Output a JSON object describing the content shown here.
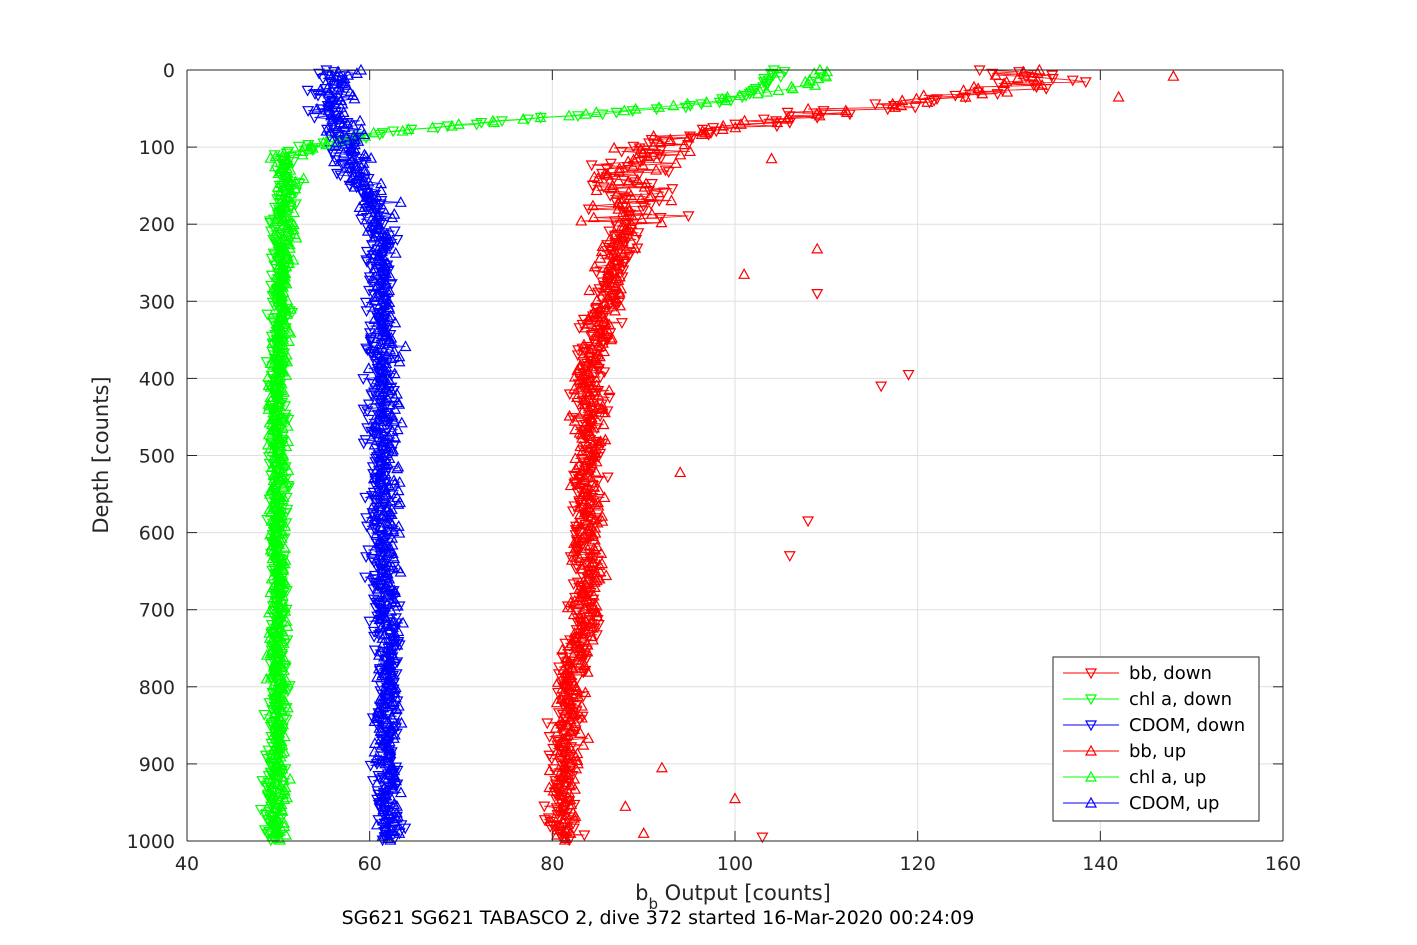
{
  "chart_data": {
    "type": "scatter",
    "title": "",
    "xlabel_base": "b",
    "xlabel_sub": "b",
    "xlabel_rest": " Output [counts]",
    "ylabel": "Depth [counts]",
    "caption": "SG621 SG621 TABASCO 2, dive 372 started 16-Mar-2020 00:24:09",
    "xlim": [
      40,
      160
    ],
    "ylim": [
      0,
      1000
    ],
    "y_reversed": true,
    "grid": true,
    "legend_position": "bottom-right",
    "xticks": [
      40,
      60,
      80,
      100,
      120,
      140,
      160
    ],
    "yticks": [
      0,
      100,
      200,
      300,
      400,
      500,
      600,
      700,
      800,
      900,
      1000
    ],
    "series": [
      {
        "name": "bb, down",
        "color": "#ff0000",
        "marker": "triangle-down",
        "profile": [
          [
            0,
            128
          ],
          [
            20,
            135
          ],
          [
            40,
            120
          ],
          [
            60,
            108
          ],
          [
            80,
            97
          ],
          [
            100,
            91
          ],
          [
            130,
            89
          ],
          [
            180,
            88
          ],
          [
            230,
            87
          ],
          [
            300,
            86
          ],
          [
            400,
            84
          ],
          [
            500,
            84
          ],
          [
            600,
            83
          ],
          [
            700,
            84
          ],
          [
            800,
            82
          ],
          [
            900,
            81
          ],
          [
            1000,
            81
          ]
        ]
      },
      {
        "name": "chl a, down",
        "color": "#00ff00",
        "marker": "triangle-down",
        "profile": [
          [
            0,
            105
          ],
          [
            20,
            103
          ],
          [
            40,
            100
          ],
          [
            55,
            88
          ],
          [
            65,
            76
          ],
          [
            80,
            62
          ],
          [
            95,
            55
          ],
          [
            110,
            51
          ],
          [
            150,
            51
          ],
          [
            200,
            50
          ],
          [
            400,
            50
          ],
          [
            600,
            50
          ],
          [
            800,
            50
          ],
          [
            1000,
            49
          ]
        ]
      },
      {
        "name": "CDOM, down",
        "color": "#0000ff",
        "marker": "triangle-down",
        "profile": [
          [
            0,
            56
          ],
          [
            50,
            55
          ],
          [
            100,
            57
          ],
          [
            150,
            59
          ],
          [
            200,
            61
          ],
          [
            400,
            61
          ],
          [
            600,
            61
          ],
          [
            800,
            62
          ],
          [
            1000,
            62
          ]
        ]
      },
      {
        "name": "bb, up",
        "color": "#ff0000",
        "marker": "triangle-up",
        "profile": [
          [
            0,
            133
          ],
          [
            20,
            130
          ],
          [
            40,
            120
          ],
          [
            60,
            108
          ],
          [
            80,
            97
          ],
          [
            100,
            91
          ],
          [
            130,
            89
          ],
          [
            180,
            88
          ],
          [
            230,
            87
          ],
          [
            300,
            86
          ],
          [
            400,
            84
          ],
          [
            500,
            84
          ],
          [
            600,
            84
          ],
          [
            700,
            84
          ],
          [
            800,
            82
          ],
          [
            900,
            82
          ],
          [
            1000,
            81
          ]
        ]
      },
      {
        "name": "chl a, up",
        "color": "#00ff00",
        "marker": "triangle-up",
        "profile": [
          [
            0,
            110
          ],
          [
            20,
            108
          ],
          [
            40,
            98
          ],
          [
            55,
            86
          ],
          [
            65,
            75
          ],
          [
            80,
            62
          ],
          [
            95,
            55
          ],
          [
            110,
            51
          ],
          [
            150,
            51
          ],
          [
            200,
            51
          ],
          [
            400,
            50
          ],
          [
            600,
            50
          ],
          [
            800,
            50
          ],
          [
            1000,
            50
          ]
        ]
      },
      {
        "name": "CDOM, up",
        "color": "#0000ff",
        "marker": "triangle-up",
        "profile": [
          [
            0,
            57
          ],
          [
            50,
            56
          ],
          [
            100,
            58
          ],
          [
            150,
            60
          ],
          [
            200,
            61
          ],
          [
            400,
            62
          ],
          [
            600,
            62
          ],
          [
            800,
            62
          ],
          [
            1000,
            62
          ]
        ]
      }
    ],
    "outliers": [
      {
        "series": "bb, down",
        "points": [
          [
            290,
            109
          ],
          [
            395,
            119
          ],
          [
            410,
            116
          ],
          [
            585,
            108
          ],
          [
            630,
            106
          ],
          [
            995,
            103
          ]
        ]
      },
      {
        "series": "bb, up",
        "points": [
          [
            8,
            148
          ],
          [
            35,
            142
          ],
          [
            115,
            104
          ],
          [
            232,
            109
          ],
          [
            265,
            101
          ],
          [
            522,
            94
          ],
          [
            905,
            92
          ],
          [
            945,
            100
          ],
          [
            955,
            88
          ],
          [
            990,
            90
          ]
        ]
      }
    ]
  }
}
